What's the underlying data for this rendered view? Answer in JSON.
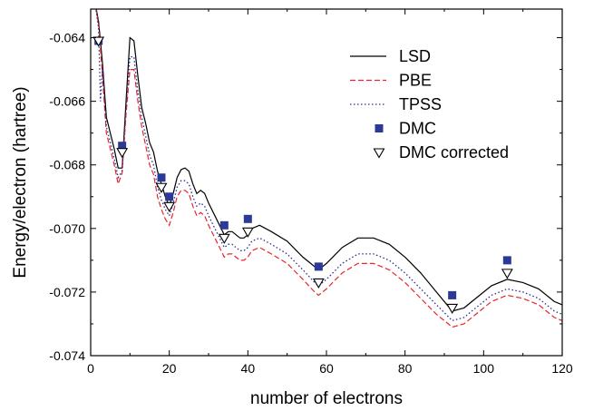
{
  "chart_data": {
    "type": "line",
    "xlabel": "number of electrons",
    "ylabel": "Energy/electron (hartree)",
    "xlim": [
      0,
      120
    ],
    "ylim": [
      -0.074,
      -0.0631
    ],
    "x_ticks": [
      0,
      20,
      40,
      60,
      80,
      100,
      120
    ],
    "x_tick_labels": [
      "0",
      "20",
      "40",
      "60",
      "80",
      "100",
      "120"
    ],
    "y_ticks": [
      -0.074,
      -0.072,
      -0.07,
      -0.068,
      -0.066,
      -0.064
    ],
    "y_tick_labels": [
      "-0.074",
      "-0.072",
      "-0.070",
      "-0.068",
      "-0.066",
      "-0.064"
    ],
    "legend_position": "top-right",
    "grid": false,
    "series": [
      {
        "name": "LSD",
        "kind": "line",
        "style": "solid",
        "color": "#000000",
        "points": [
          [
            1,
            -0.0628
          ],
          [
            2,
            -0.0635
          ],
          [
            3,
            -0.0648
          ],
          [
            4,
            -0.0665
          ],
          [
            6,
            -0.0675
          ],
          [
            7,
            -0.0681
          ],
          [
            8,
            -0.0681
          ],
          [
            9,
            -0.066
          ],
          [
            10,
            -0.064
          ],
          [
            11,
            -0.0641
          ],
          [
            12,
            -0.0652
          ],
          [
            13,
            -0.0662
          ],
          [
            14,
            -0.0667
          ],
          [
            15,
            -0.0673
          ],
          [
            16,
            -0.0676
          ],
          [
            17,
            -0.0682
          ],
          [
            18,
            -0.0686
          ],
          [
            19,
            -0.069
          ],
          [
            20,
            -0.0693
          ],
          [
            21,
            -0.0689
          ],
          [
            22,
            -0.0684
          ],
          [
            23,
            -0.06815
          ],
          [
            24,
            -0.0681
          ],
          [
            25,
            -0.0682
          ],
          [
            26,
            -0.0686
          ],
          [
            27,
            -0.0689
          ],
          [
            28,
            -0.0688
          ],
          [
            29,
            -0.0689
          ],
          [
            30,
            -0.0692
          ],
          [
            32,
            -0.0697
          ],
          [
            34,
            -0.0702
          ],
          [
            35,
            -0.0701
          ],
          [
            36,
            -0.0701
          ],
          [
            37,
            -0.0702
          ],
          [
            38,
            -0.0703
          ],
          [
            39,
            -0.0703
          ],
          [
            40,
            -0.0702
          ],
          [
            41,
            -0.07
          ],
          [
            43,
            -0.0699
          ],
          [
            46,
            -0.0701
          ],
          [
            50,
            -0.0704
          ],
          [
            54,
            -0.0709
          ],
          [
            57,
            -0.0712
          ],
          [
            58,
            -0.0713
          ],
          [
            60,
            -0.0711
          ],
          [
            64,
            -0.0706
          ],
          [
            68,
            -0.0703
          ],
          [
            72,
            -0.0703
          ],
          [
            76,
            -0.0705
          ],
          [
            80,
            -0.0709
          ],
          [
            84,
            -0.0714
          ],
          [
            88,
            -0.072
          ],
          [
            92,
            -0.0726
          ],
          [
            95,
            -0.0725
          ],
          [
            98,
            -0.0722
          ],
          [
            102,
            -0.0718
          ],
          [
            106,
            -0.0716
          ],
          [
            110,
            -0.0717
          ],
          [
            114,
            -0.0719
          ],
          [
            118,
            -0.0723
          ],
          [
            120,
            -0.0724
          ]
        ]
      },
      {
        "name": "PBE",
        "kind": "line",
        "style": "dashed",
        "color": "#e8262b",
        "points": [
          [
            1,
            -0.0628
          ],
          [
            2,
            -0.0636
          ],
          [
            3,
            -0.0652
          ],
          [
            4,
            -0.067
          ],
          [
            6,
            -0.068
          ],
          [
            7,
            -0.0686
          ],
          [
            8,
            -0.06825
          ],
          [
            9,
            -0.0664
          ],
          [
            10,
            -0.065
          ],
          [
            11,
            -0.065
          ],
          [
            12,
            -0.066
          ],
          [
            13,
            -0.0668
          ],
          [
            14,
            -0.0674
          ],
          [
            15,
            -0.068
          ],
          [
            16,
            -0.0683
          ],
          [
            17,
            -0.069
          ],
          [
            18,
            -0.0694
          ],
          [
            19,
            -0.0697
          ],
          [
            20,
            -0.0699
          ],
          [
            21,
            -0.0695
          ],
          [
            22,
            -0.069
          ],
          [
            23,
            -0.0688
          ],
          [
            24,
            -0.0688
          ],
          [
            25,
            -0.0689
          ],
          [
            26,
            -0.0693
          ],
          [
            27,
            -0.0696
          ],
          [
            28,
            -0.0695
          ],
          [
            29,
            -0.0696
          ],
          [
            30,
            -0.0699
          ],
          [
            32,
            -0.0704
          ],
          [
            34,
            -0.0709
          ],
          [
            35,
            -0.0708
          ],
          [
            36,
            -0.0708
          ],
          [
            37,
            -0.0709
          ],
          [
            38,
            -0.071
          ],
          [
            39,
            -0.071
          ],
          [
            40,
            -0.0709
          ],
          [
            41,
            -0.0707
          ],
          [
            43,
            -0.0706
          ],
          [
            46,
            -0.0708
          ],
          [
            50,
            -0.0711
          ],
          [
            54,
            -0.0716
          ],
          [
            57,
            -0.072
          ],
          [
            58,
            -0.0721
          ],
          [
            60,
            -0.0719
          ],
          [
            64,
            -0.0714
          ],
          [
            68,
            -0.0711
          ],
          [
            72,
            -0.0711
          ],
          [
            76,
            -0.0713
          ],
          [
            80,
            -0.0717
          ],
          [
            84,
            -0.0722
          ],
          [
            88,
            -0.0727
          ],
          [
            92,
            -0.0731
          ],
          [
            95,
            -0.073
          ],
          [
            98,
            -0.0727
          ],
          [
            102,
            -0.0723
          ],
          [
            106,
            -0.0721
          ],
          [
            110,
            -0.0722
          ],
          [
            114,
            -0.0724
          ],
          [
            118,
            -0.0728
          ],
          [
            120,
            -0.0729
          ]
        ]
      },
      {
        "name": "TPSS",
        "kind": "line",
        "style": "dotted",
        "color": "#2c2c8c",
        "points": [
          [
            1,
            -0.0628
          ],
          [
            2,
            -0.0637
          ],
          [
            2.5,
            -0.066
          ],
          [
            3,
            -0.065
          ],
          [
            4,
            -0.0668
          ],
          [
            6,
            -0.0678
          ],
          [
            7,
            -0.0684
          ],
          [
            8,
            -0.0682
          ],
          [
            9,
            -0.0662
          ],
          [
            10,
            -0.0646
          ],
          [
            11,
            -0.0646
          ],
          [
            12,
            -0.0657
          ],
          [
            13,
            -0.0665
          ],
          [
            14,
            -0.0671
          ],
          [
            15,
            -0.0677
          ],
          [
            16,
            -0.068
          ],
          [
            17,
            -0.0687
          ],
          [
            18,
            -0.0691
          ],
          [
            19,
            -0.0694
          ],
          [
            20,
            -0.0696
          ],
          [
            21,
            -0.0692
          ],
          [
            22,
            -0.0687
          ],
          [
            23,
            -0.0685
          ],
          [
            24,
            -0.0685
          ],
          [
            25,
            -0.0686
          ],
          [
            26,
            -0.069
          ],
          [
            27,
            -0.0693
          ],
          [
            28,
            -0.0692
          ],
          [
            29,
            -0.0693
          ],
          [
            30,
            -0.0696
          ],
          [
            32,
            -0.0701
          ],
          [
            34,
            -0.0706
          ],
          [
            35,
            -0.0705
          ],
          [
            36,
            -0.0705
          ],
          [
            37,
            -0.0706
          ],
          [
            38,
            -0.0707
          ],
          [
            39,
            -0.0707
          ],
          [
            40,
            -0.0706
          ],
          [
            41,
            -0.0704
          ],
          [
            43,
            -0.0703
          ],
          [
            46,
            -0.0705
          ],
          [
            50,
            -0.0708
          ],
          [
            54,
            -0.0713
          ],
          [
            57,
            -0.0717
          ],
          [
            58,
            -0.0718
          ],
          [
            60,
            -0.0716
          ],
          [
            64,
            -0.0711
          ],
          [
            68,
            -0.0708
          ],
          [
            72,
            -0.0708
          ],
          [
            76,
            -0.071
          ],
          [
            80,
            -0.0714
          ],
          [
            84,
            -0.0719
          ],
          [
            88,
            -0.0724
          ],
          [
            92,
            -0.0729
          ],
          [
            95,
            -0.0728
          ],
          [
            98,
            -0.0725
          ],
          [
            102,
            -0.0721
          ],
          [
            106,
            -0.0719
          ],
          [
            110,
            -0.072
          ],
          [
            114,
            -0.0722
          ],
          [
            118,
            -0.0726
          ],
          [
            120,
            -0.0727
          ]
        ]
      },
      {
        "name": "DMC",
        "kind": "marker",
        "marker": "square",
        "color": "#2b3a97",
        "points": [
          [
            2,
            -0.0641
          ],
          [
            8,
            -0.0674
          ],
          [
            18,
            -0.0684
          ],
          [
            20,
            -0.069
          ],
          [
            34,
            -0.0699
          ],
          [
            40,
            -0.0697
          ],
          [
            58,
            -0.0712
          ],
          [
            92,
            -0.0721
          ],
          [
            106,
            -0.071
          ]
        ]
      },
      {
        "name": "DMC corrected",
        "kind": "marker",
        "marker": "triangle-down",
        "color": "#000000",
        "points": [
          [
            2,
            -0.0641
          ],
          [
            8,
            -0.0676
          ],
          [
            18,
            -0.0687
          ],
          [
            20,
            -0.0693
          ],
          [
            34,
            -0.0703
          ],
          [
            40,
            -0.0701
          ],
          [
            58,
            -0.0717
          ],
          [
            92,
            -0.0725
          ],
          [
            106,
            -0.0714
          ]
        ]
      }
    ]
  }
}
